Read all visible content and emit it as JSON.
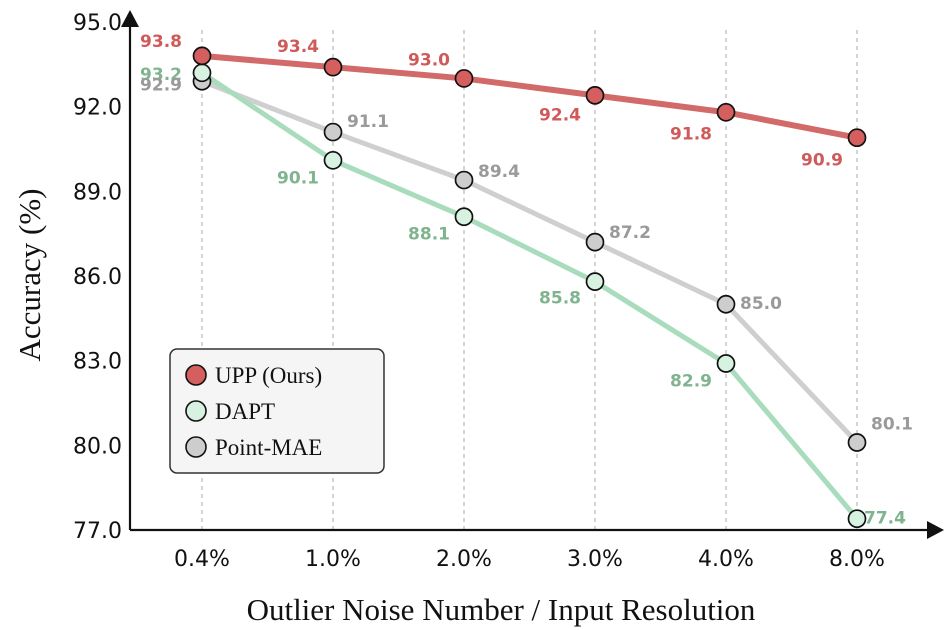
{
  "chart_data": {
    "type": "line",
    "categories": [
      "0.4%",
      "1.0%",
      "2.0%",
      "3.0%",
      "4.0%",
      "8.0%"
    ],
    "series": [
      {
        "name": "UPP (Ours)",
        "values": [
          93.8,
          93.4,
          93.0,
          92.4,
          91.8,
          90.9
        ],
        "line_color": "#d26a6a",
        "marker_color": "#d55e5e",
        "label_color": "#d05a5a"
      },
      {
        "name": "DAPT",
        "values": [
          93.2,
          90.1,
          88.1,
          85.8,
          82.9,
          77.4
        ],
        "line_color": "#a8dcbd",
        "marker_color": "#d8f2e2",
        "label_color": "#7fb48f"
      },
      {
        "name": "Point-MAE",
        "values": [
          92.9,
          91.1,
          89.4,
          87.2,
          85.0,
          80.1
        ],
        "line_color": "#cfcfcf",
        "marker_color": "#cdcdcd",
        "label_color": "#9a9a9a"
      }
    ],
    "ylabel": "Accuracy (%)",
    "xlabel": "Outlier Noise Number / Input Resolution",
    "yticks": [
      "77.0",
      "80.0",
      "83.0",
      "86.0",
      "89.0",
      "92.0",
      "95.0"
    ],
    "ylim": [
      77.0,
      95.0
    ],
    "grid": "vertical dashed",
    "legend": "lower-left"
  }
}
